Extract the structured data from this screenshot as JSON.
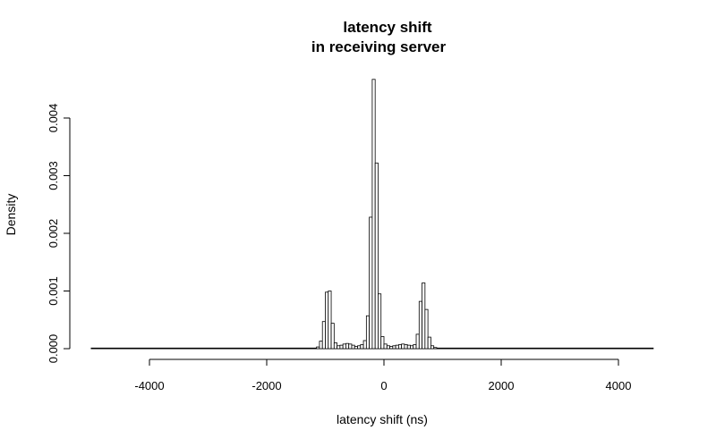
{
  "chart_data": {
    "type": "bar",
    "title_line1": "latency shift",
    "title_line2": "in receiving server",
    "xlabel": "latency shift (ns)",
    "ylabel": "Density",
    "xlim": [
      -5000,
      4600
    ],
    "ylim": [
      0,
      0.0047
    ],
    "x_ticks": [
      -4000,
      -2000,
      0,
      2000,
      4000
    ],
    "x_tick_labels": [
      "-4000",
      "-2000",
      "0",
      "2000",
      "4000"
    ],
    "y_ticks": [
      0,
      0.001,
      0.002,
      0.003,
      0.004
    ],
    "y_tick_labels": [
      "0.000",
      "0.001",
      "0.002",
      "0.003",
      "0.004"
    ],
    "bin_width": 50,
    "grid": false,
    "bars": [
      {
        "x0": -1150,
        "x1": -1100,
        "density": 3e-05
      },
      {
        "x0": -1100,
        "x1": -1050,
        "density": 0.00013
      },
      {
        "x0": -1050,
        "x1": -1000,
        "density": 0.00047
      },
      {
        "x0": -1000,
        "x1": -950,
        "density": 0.00098
      },
      {
        "x0": -950,
        "x1": -900,
        "density": 0.001
      },
      {
        "x0": -900,
        "x1": -850,
        "density": 0.00044
      },
      {
        "x0": -850,
        "x1": -800,
        "density": 0.0001
      },
      {
        "x0": -800,
        "x1": -750,
        "density": 5e-05
      },
      {
        "x0": -750,
        "x1": -700,
        "density": 6e-05
      },
      {
        "x0": -700,
        "x1": -650,
        "density": 8e-05
      },
      {
        "x0": -650,
        "x1": -600,
        "density": 9e-05
      },
      {
        "x0": -600,
        "x1": -550,
        "density": 8e-05
      },
      {
        "x0": -550,
        "x1": -500,
        "density": 6e-05
      },
      {
        "x0": -500,
        "x1": -450,
        "density": 4e-05
      },
      {
        "x0": -450,
        "x1": -400,
        "density": 5e-05
      },
      {
        "x0": -400,
        "x1": -350,
        "density": 7e-05
      },
      {
        "x0": -350,
        "x1": -300,
        "density": 0.00014
      },
      {
        "x0": -300,
        "x1": -250,
        "density": 0.00057
      },
      {
        "x0": -250,
        "x1": -200,
        "density": 0.00228
      },
      {
        "x0": -200,
        "x1": -150,
        "density": 0.00467
      },
      {
        "x0": -150,
        "x1": -100,
        "density": 0.00322
      },
      {
        "x0": -100,
        "x1": -50,
        "density": 0.00095
      },
      {
        "x0": -50,
        "x1": 0,
        "density": 0.00021
      },
      {
        "x0": 0,
        "x1": 50,
        "density": 8e-05
      },
      {
        "x0": 50,
        "x1": 100,
        "density": 5e-05
      },
      {
        "x0": 100,
        "x1": 150,
        "density": 4e-05
      },
      {
        "x0": 150,
        "x1": 200,
        "density": 5e-05
      },
      {
        "x0": 200,
        "x1": 250,
        "density": 6e-05
      },
      {
        "x0": 250,
        "x1": 300,
        "density": 7e-05
      },
      {
        "x0": 300,
        "x1": 350,
        "density": 8e-05
      },
      {
        "x0": 350,
        "x1": 400,
        "density": 7e-05
      },
      {
        "x0": 400,
        "x1": 450,
        "density": 6e-05
      },
      {
        "x0": 450,
        "x1": 500,
        "density": 5e-05
      },
      {
        "x0": 500,
        "x1": 550,
        "density": 7e-05
      },
      {
        "x0": 550,
        "x1": 600,
        "density": 0.00025
      },
      {
        "x0": 600,
        "x1": 650,
        "density": 0.00082
      },
      {
        "x0": 650,
        "x1": 700,
        "density": 0.00114
      },
      {
        "x0": 700,
        "x1": 750,
        "density": 0.00068
      },
      {
        "x0": 750,
        "x1": 800,
        "density": 0.0002
      },
      {
        "x0": 800,
        "x1": 850,
        "density": 5e-05
      },
      {
        "x0": 850,
        "x1": 900,
        "density": 2e-05
      }
    ],
    "tail_density": 5e-06
  }
}
